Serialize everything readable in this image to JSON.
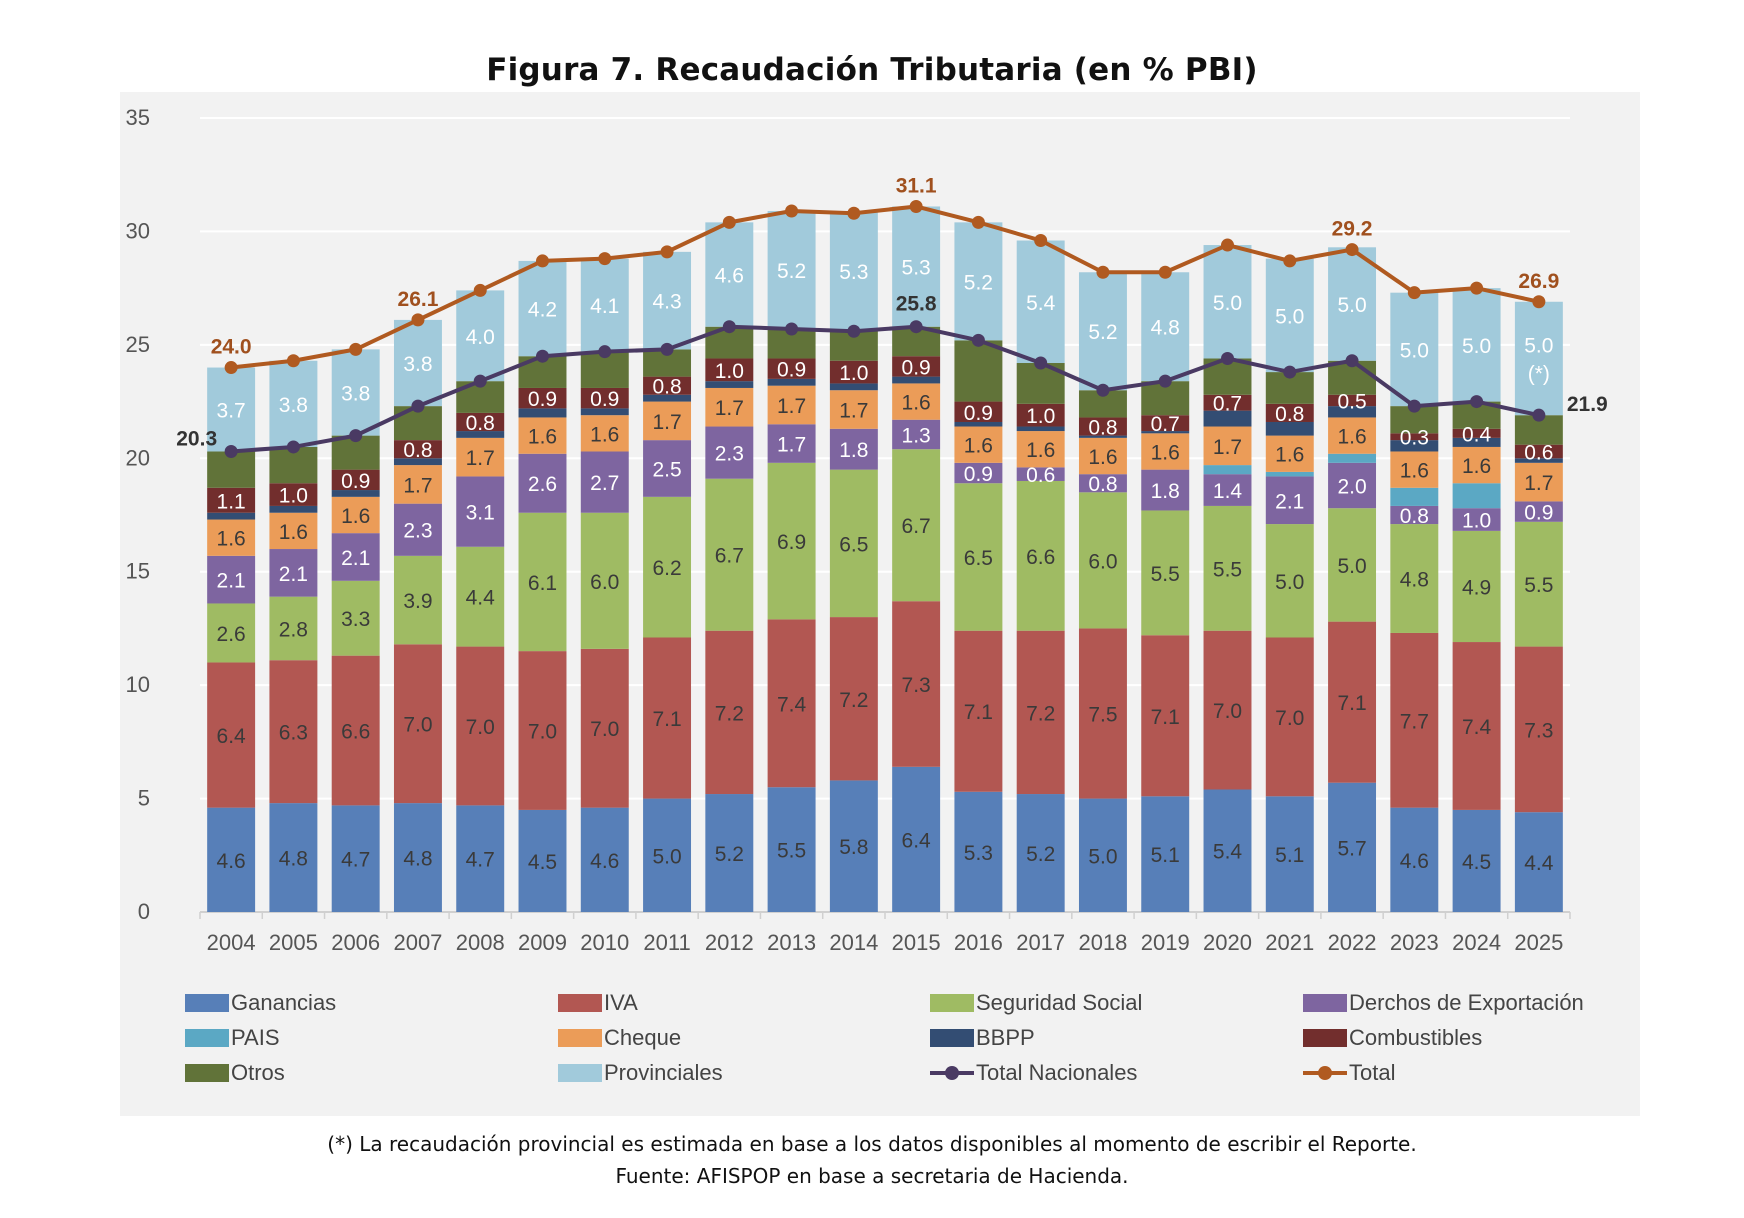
{
  "title": "Figura 7.  Recaudación Tributaria (en % PBI)",
  "footnote": "(*) La recaudación provincial es estimada en base a los datos disponibles al momento de escribir el Reporte.",
  "source": "Fuente: AFISPOP en base a secretaria de Hacienda.",
  "chart_data": {
    "type": "bar",
    "stacked": true,
    "title": "Figura 7.  Recaudación Tributaria (en % PBI)",
    "xlabel": "",
    "ylabel": "",
    "ylim": [
      0,
      35
    ],
    "yticks": [
      0,
      5,
      10,
      15,
      20,
      25,
      30,
      35
    ],
    "grid": true,
    "legend_position": "bottom",
    "categories": [
      "2004",
      "2005",
      "2006",
      "2007",
      "2008",
      "2009",
      "2010",
      "2011",
      "2012",
      "2013",
      "2014",
      "2015",
      "2016",
      "2017",
      "2018",
      "2019",
      "2020",
      "2021",
      "2022",
      "2023",
      "2024",
      "2025"
    ],
    "series": [
      {
        "name": "Ganancias",
        "color": "#577fb8",
        "label_color": "#3a3a3a",
        "show_labels": true,
        "values": [
          4.6,
          4.8,
          4.7,
          4.8,
          4.7,
          4.5,
          4.6,
          5.0,
          5.2,
          5.5,
          5.8,
          6.4,
          5.3,
          5.2,
          5.0,
          5.1,
          5.4,
          5.1,
          5.7,
          4.6,
          4.5,
          4.4
        ]
      },
      {
        "name": "IVA",
        "color": "#b25752",
        "label_color": "#3a3a3a",
        "show_labels": true,
        "values": [
          6.4,
          6.3,
          6.6,
          7.0,
          7.0,
          7.0,
          7.0,
          7.1,
          7.2,
          7.4,
          7.2,
          7.3,
          7.1,
          7.2,
          7.5,
          7.1,
          7.0,
          7.0,
          7.1,
          7.7,
          7.4,
          7.3
        ]
      },
      {
        "name": "Seguridad Social",
        "color": "#9fbb63",
        "label_color": "#3a3a3a",
        "show_labels": true,
        "values": [
          2.6,
          2.8,
          3.3,
          3.9,
          4.4,
          6.1,
          6.0,
          6.2,
          6.7,
          6.9,
          6.5,
          6.7,
          6.5,
          6.6,
          6.0,
          5.5,
          5.5,
          5.0,
          5.0,
          4.8,
          4.9,
          5.5
        ]
      },
      {
        "name": "Derchos de Exportación",
        "color": "#7e65a0",
        "label_color": "#ffffff",
        "show_labels": true,
        "values": [
          2.1,
          2.1,
          2.1,
          2.3,
          3.1,
          2.6,
          2.7,
          2.5,
          2.3,
          1.7,
          1.8,
          1.3,
          0.9,
          0.6,
          0.8,
          1.8,
          1.4,
          2.1,
          2.0,
          0.8,
          1.0,
          0.9
        ]
      },
      {
        "name": "PAIS",
        "color": "#5ba8c4",
        "label_color": "#ffffff",
        "show_labels": false,
        "values": [
          0,
          0,
          0,
          0,
          0,
          0,
          0,
          0,
          0,
          0,
          0,
          0,
          0,
          0,
          0,
          0,
          0.4,
          0.2,
          0.4,
          0.8,
          1.1,
          0
        ]
      },
      {
        "name": "Cheque",
        "color": "#eb9c58",
        "label_color": "#3a3a3a",
        "show_labels": true,
        "values": [
          1.6,
          1.6,
          1.6,
          1.7,
          1.7,
          1.6,
          1.6,
          1.7,
          1.7,
          1.7,
          1.7,
          1.6,
          1.6,
          1.6,
          1.6,
          1.6,
          1.7,
          1.6,
          1.6,
          1.6,
          1.6,
          1.7
        ]
      },
      {
        "name": "BBPP",
        "color": "#334d73",
        "label_color": "#ffffff",
        "show_labels": false,
        "values": [
          0.3,
          0.3,
          0.3,
          0.3,
          0.3,
          0.4,
          0.3,
          0.3,
          0.3,
          0.3,
          0.3,
          0.3,
          0.2,
          0.2,
          0.1,
          0.1,
          0.7,
          0.6,
          0.5,
          0.5,
          0.4,
          0.2
        ]
      },
      {
        "name": "Combustibles",
        "color": "#722e2d",
        "label_color": "#ffffff",
        "show_labels": true,
        "values": [
          1.1,
          1.0,
          0.9,
          0.8,
          0.8,
          0.9,
          0.9,
          0.8,
          1.0,
          0.9,
          1.0,
          0.9,
          0.9,
          1.0,
          0.8,
          0.7,
          0.7,
          0.8,
          0.5,
          0.3,
          0.4,
          0.6
        ]
      },
      {
        "name": "Otros",
        "color": "#617339",
        "label_color": "#ffffff",
        "show_labels": false,
        "values": [
          1.6,
          1.6,
          1.5,
          1.5,
          1.4,
          1.4,
          1.6,
          1.2,
          1.4,
          1.3,
          1.3,
          1.3,
          2.7,
          1.8,
          1.2,
          1.5,
          1.6,
          1.4,
          1.5,
          1.2,
          1.2,
          1.3
        ]
      },
      {
        "name": "Provinciales",
        "color": "#a1cadb",
        "label_color": "#ffffff",
        "show_labels": true,
        "values": [
          3.7,
          3.8,
          3.8,
          3.8,
          4.0,
          4.2,
          4.1,
          4.3,
          4.6,
          5.2,
          5.3,
          5.3,
          5.2,
          5.4,
          5.2,
          4.8,
          5.0,
          5.0,
          5.0,
          5.0,
          5.0,
          5.0
        ],
        "extra_label": {
          "category": "2025",
          "text": "(*)"
        }
      }
    ],
    "lines": [
      {
        "name": "Total Nacionales",
        "color": "#4a3a63",
        "label_color": "#333333",
        "values": [
          20.3,
          20.5,
          21.0,
          22.3,
          23.4,
          24.5,
          24.7,
          24.8,
          25.8,
          25.7,
          25.6,
          25.8,
          25.2,
          24.2,
          23.0,
          23.4,
          24.4,
          23.8,
          24.3,
          22.3,
          22.5,
          21.9
        ],
        "annotations": [
          {
            "category": "2004",
            "text": "20.3",
            "anchor": "left"
          },
          {
            "category": "2015",
            "text": "25.8",
            "anchor": "above"
          },
          {
            "category": "2025",
            "text": "21.9",
            "anchor": "right"
          }
        ]
      },
      {
        "name": "Total",
        "color": "#b05a20",
        "label_color": "#a0501e",
        "values": [
          24.0,
          24.3,
          24.8,
          26.1,
          27.4,
          28.7,
          28.8,
          29.1,
          30.4,
          30.9,
          30.8,
          31.1,
          30.4,
          29.6,
          28.2,
          28.2,
          29.4,
          28.7,
          29.2,
          27.3,
          27.5,
          26.9
        ],
        "annotations": [
          {
            "category": "2004",
            "text": "24.0",
            "anchor": "above"
          },
          {
            "category": "2007",
            "text": "26.1",
            "anchor": "above"
          },
          {
            "category": "2015",
            "text": "31.1",
            "anchor": "above"
          },
          {
            "category": "2022",
            "text": "29.2",
            "anchor": "above"
          },
          {
            "category": "2025",
            "text": "26.9",
            "anchor": "above"
          }
        ]
      }
    ],
    "legend": [
      {
        "name": "Ganancias",
        "kind": "box",
        "color": "#577fb8"
      },
      {
        "name": "IVA",
        "kind": "box",
        "color": "#b25752"
      },
      {
        "name": "Seguridad Social",
        "kind": "box",
        "color": "#9fbb63"
      },
      {
        "name": "Derchos de Exportación",
        "kind": "box",
        "color": "#7e65a0"
      },
      {
        "name": "PAIS",
        "kind": "box",
        "color": "#5ba8c4"
      },
      {
        "name": "Cheque",
        "kind": "box",
        "color": "#eb9c58"
      },
      {
        "name": "BBPP",
        "kind": "box",
        "color": "#334d73"
      },
      {
        "name": "Combustibles",
        "kind": "box",
        "color": "#722e2d"
      },
      {
        "name": "Otros",
        "kind": "box",
        "color": "#617339"
      },
      {
        "name": "Provinciales",
        "kind": "box",
        "color": "#a1cadb"
      },
      {
        "name": "Total Nacionales",
        "kind": "line",
        "color": "#4a3a63"
      },
      {
        "name": "Total",
        "kind": "line",
        "color": "#b05a20"
      }
    ]
  }
}
